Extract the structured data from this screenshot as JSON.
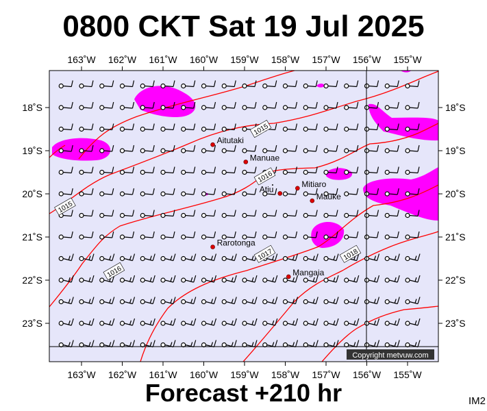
{
  "title": "0800 CKT Sat 19 Jul 2025",
  "forecast": "Forecast +210 hr",
  "corner_label": "IM2",
  "copyright": "Copyright metvuw.com",
  "colors": {
    "ocean": "#e6e6fa",
    "rain": "#ff00ff",
    "isobar": "#ff0000",
    "place_dot": "#dd0000",
    "wind": "#000000"
  },
  "lon_ticks": [
    {
      "label": "163˚W",
      "lon": -163
    },
    {
      "label": "162˚W",
      "lon": -162
    },
    {
      "label": "161˚W",
      "lon": -161
    },
    {
      "label": "160˚W",
      "lon": -160
    },
    {
      "label": "159˚W",
      "lon": -159
    },
    {
      "label": "158˚W",
      "lon": -158
    },
    {
      "label": "157˚W",
      "lon": -157
    },
    {
      "label": "156˚W",
      "lon": -156
    },
    {
      "label": "155˚W",
      "lon": -155
    }
  ],
  "lat_ticks": [
    {
      "label": "18˚S",
      "lat": -18
    },
    {
      "label": "19˚S",
      "lat": -19
    },
    {
      "label": "20˚S",
      "lat": -20
    },
    {
      "label": "21˚S",
      "lat": -21
    },
    {
      "label": "22˚S",
      "lat": -22
    },
    {
      "label": "23˚S",
      "lat": -23
    }
  ],
  "places": [
    {
      "name": "Aitutaki",
      "lon": -159.78,
      "lat": -18.86
    },
    {
      "name": "Manuae",
      "lon": -158.97,
      "lat": -19.26
    },
    {
      "name": "Atiu",
      "lon": -158.13,
      "lat": -19.99
    },
    {
      "name": "Mitiaro",
      "lon": -157.7,
      "lat": -19.87
    },
    {
      "name": "Mauke",
      "lon": -157.34,
      "lat": -20.16
    },
    {
      "name": "Rarotonga",
      "lon": -159.78,
      "lat": -21.23
    },
    {
      "name": "Mangaia",
      "lon": -157.92,
      "lat": -21.92
    }
  ],
  "isobars": [
    {
      "label": "1015",
      "label_lon": -158.6,
      "label_lat": -18.5
    },
    {
      "label": "1015",
      "label_lon": -163.4,
      "label_lat": -20.3
    },
    {
      "label": "1016",
      "label_lon": -158.5,
      "label_lat": -19.6
    },
    {
      "label": "1016",
      "label_lon": -162.2,
      "label_lat": -21.8
    },
    {
      "label": "1017",
      "label_lon": -158.5,
      "label_lat": -21.4
    },
    {
      "label": "1018",
      "label_lon": -156.4,
      "label_lat": -21.4
    }
  ]
}
